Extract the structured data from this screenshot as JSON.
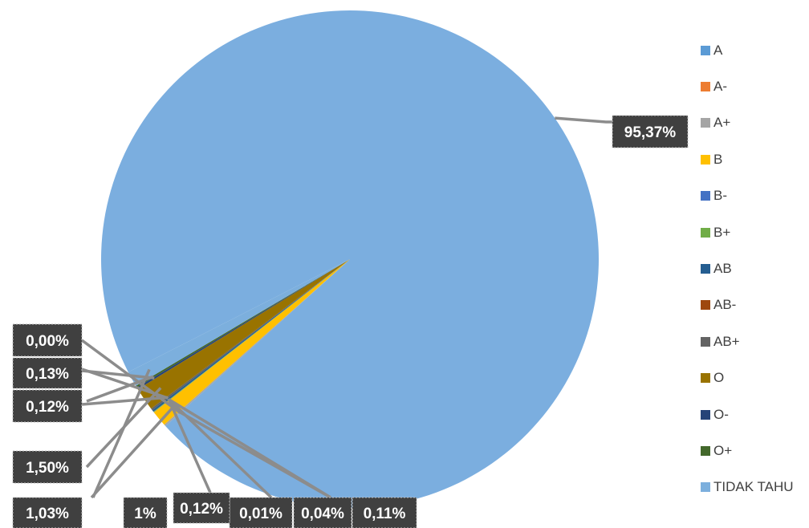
{
  "chart_data": {
    "type": "pie",
    "categories": [
      "A",
      "A-",
      "A+",
      "B",
      "B-",
      "B+",
      "AB",
      "AB-",
      "AB+",
      "O",
      "O-",
      "O+",
      "TIDAK TAHU"
    ],
    "values": [
      95.37,
      0.0,
      0.11,
      1.03,
      0.01,
      0.04,
      0.12,
      0.0,
      0.12,
      1.5,
      0.13,
      0.12,
      1.0
    ],
    "data_labels": [
      "95,37%",
      "0,00%",
      "0,11%",
      "1,03%",
      "0,01%",
      "0,04%",
      "0,12%",
      "0,00%",
      "0,12%",
      "1,50%",
      "0,13%",
      "0,12%",
      "1%"
    ],
    "colors": [
      "#5B9BD5",
      "#ED7D31",
      "#A5A5A5",
      "#FFC000",
      "#4472C4",
      "#70AD47",
      "#255E91",
      "#9E480E",
      "#636363",
      "#997300",
      "#264478",
      "#43682B",
      "#7CAFDD"
    ],
    "legend": {
      "position": "right",
      "entries": [
        "A",
        "A-",
        "A+",
        "B",
        "B-",
        "B+",
        "AB",
        "AB-",
        "AB+",
        "O",
        "O-",
        "O+",
        "TIDAK TAHU"
      ]
    },
    "title": ""
  }
}
